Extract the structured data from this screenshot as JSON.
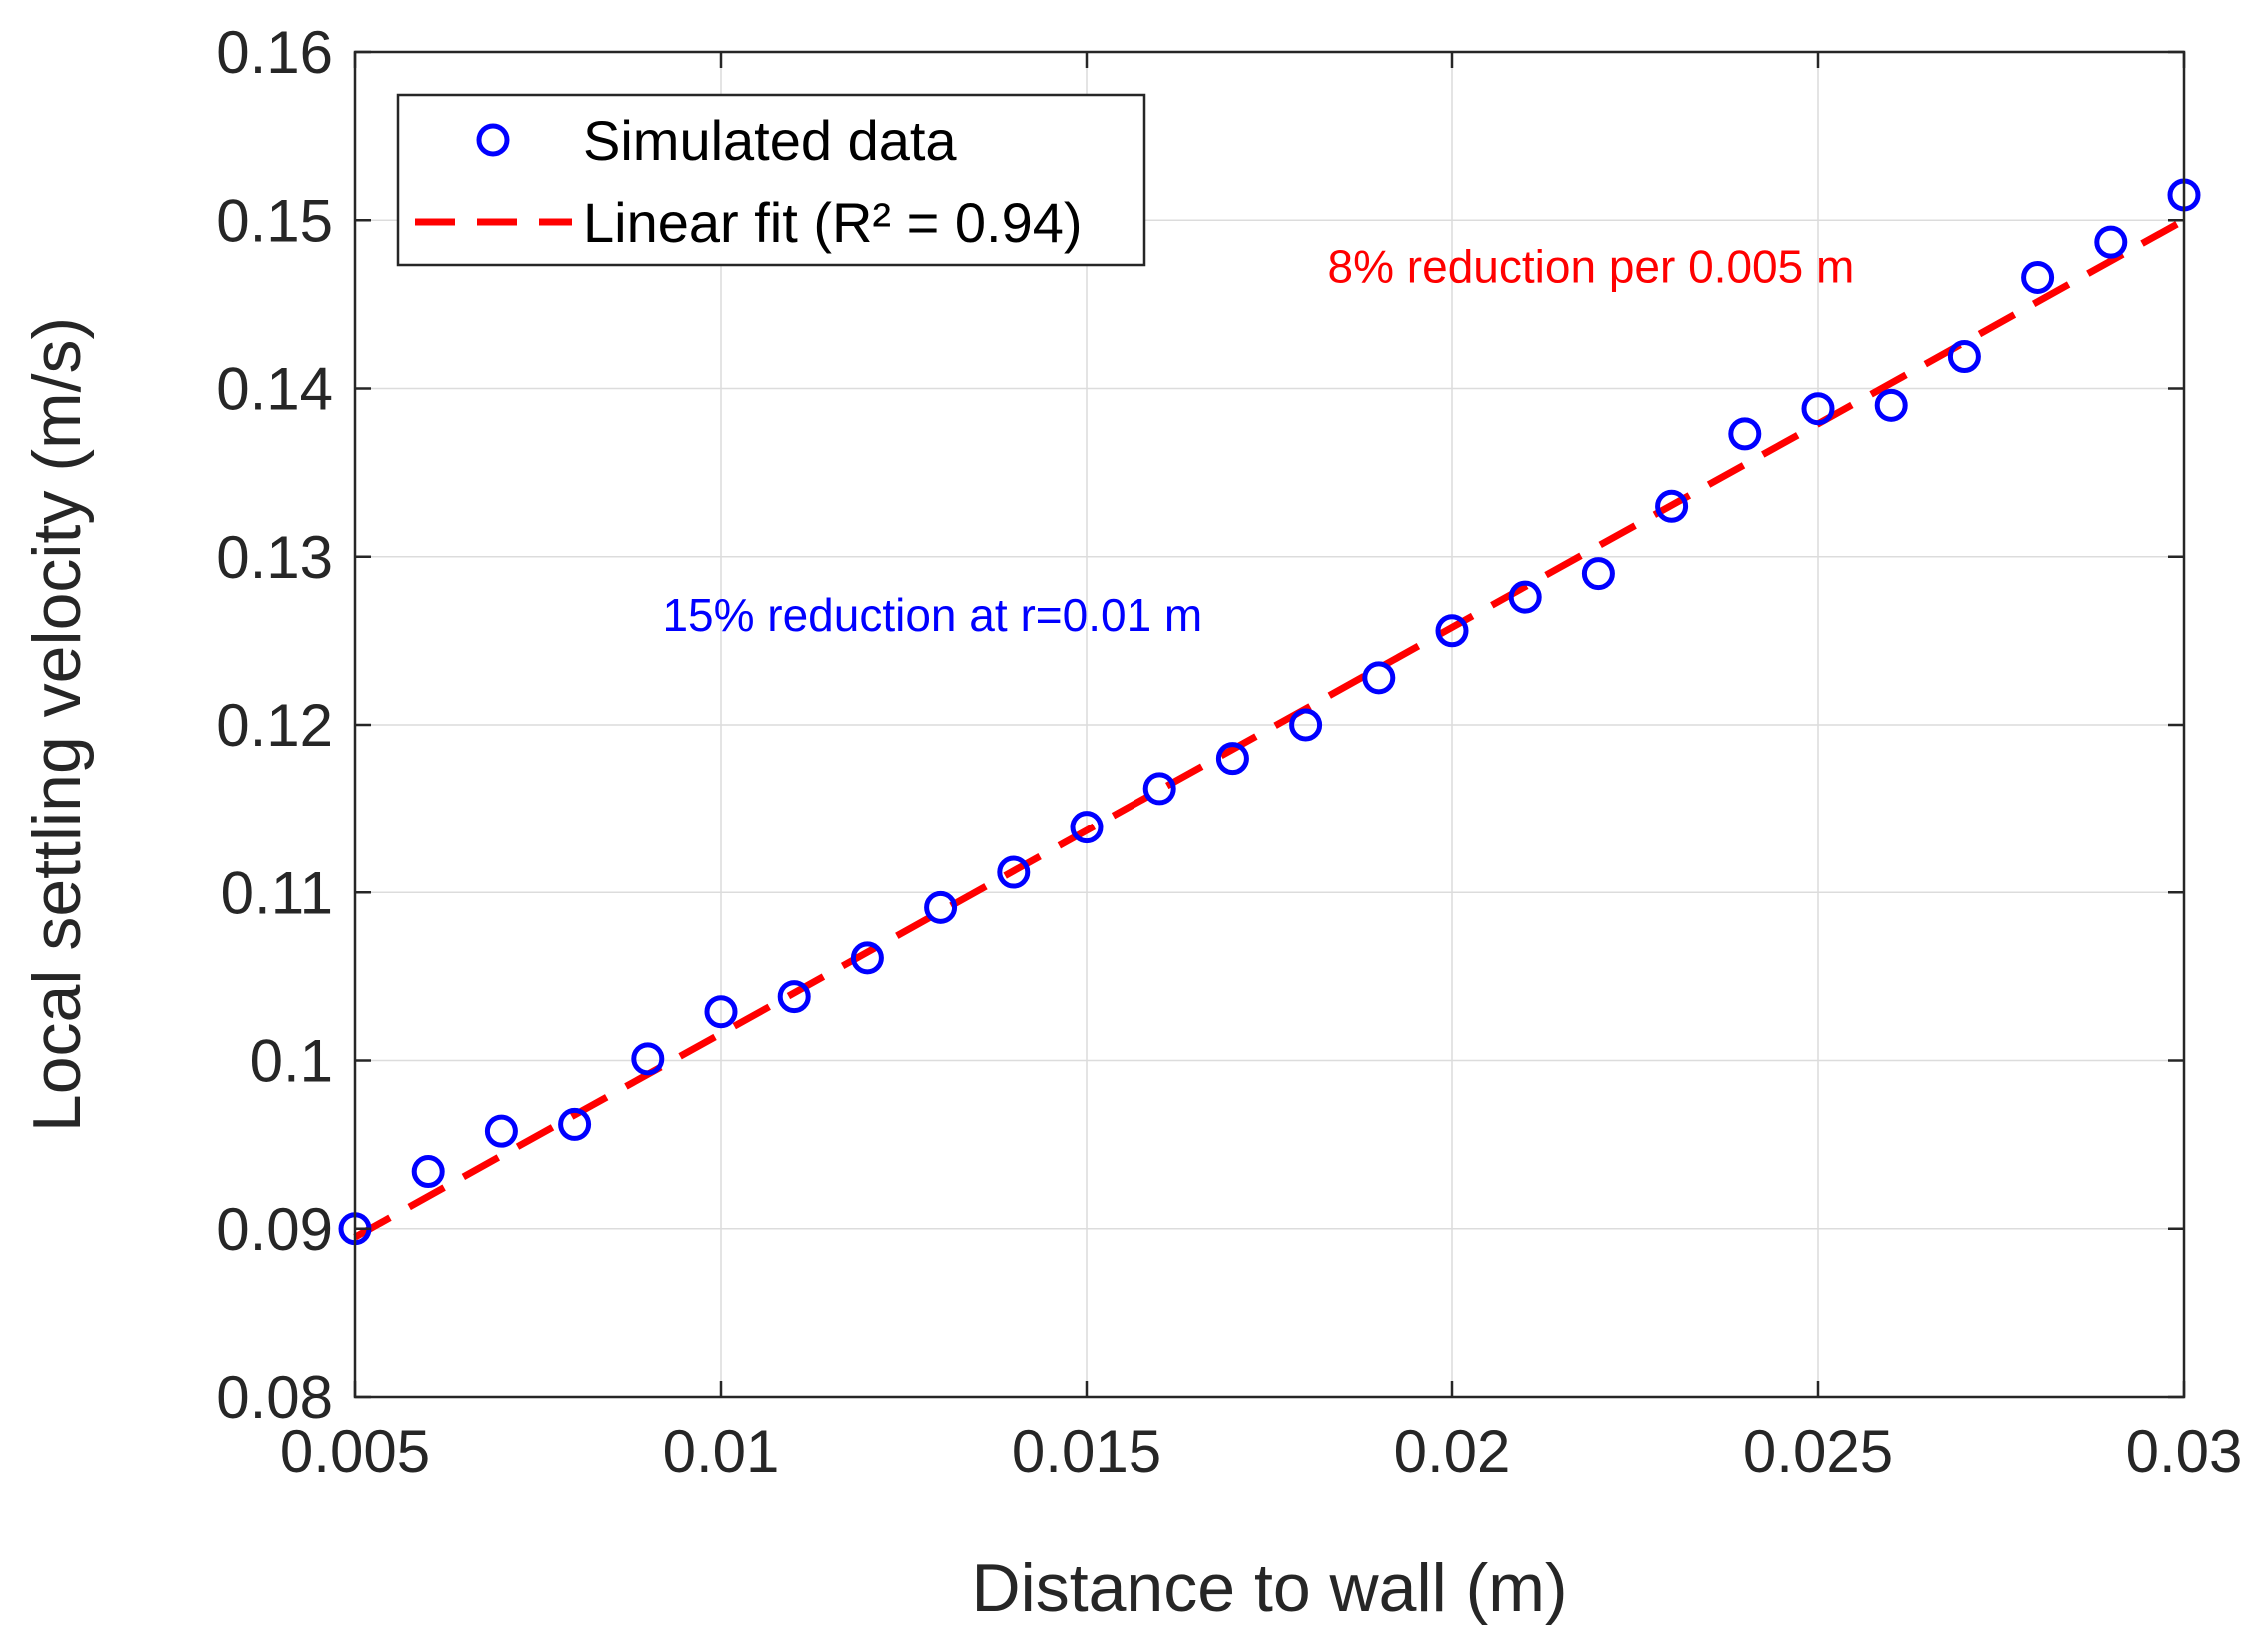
{
  "chart_data": {
    "type": "scatter",
    "title": "",
    "xlabel": "Distance to wall (m)",
    "ylabel": "Local settling velocity (m/s)",
    "xlim": [
      0.005,
      0.03
    ],
    "ylim": [
      0.08,
      0.16
    ],
    "grid": true,
    "x_ticks": [
      0.005,
      0.01,
      0.015,
      0.02,
      0.025,
      0.03
    ],
    "x_tick_labels": [
      "0.005",
      "0.01",
      "0.015",
      "0.02",
      "0.025",
      "0.03"
    ],
    "y_ticks": [
      0.08,
      0.09,
      0.1,
      0.11,
      0.12,
      0.13,
      0.14,
      0.15,
      0.16
    ],
    "y_tick_labels": [
      "0.08",
      "0.09",
      "0.1",
      "0.11",
      "0.12",
      "0.13",
      "0.14",
      "0.15",
      "0.16"
    ],
    "series": [
      {
        "name": "Simulated data",
        "kind": "scatter",
        "marker": "circle-open",
        "color": "#0000ff",
        "x": [
          0.005,
          0.006,
          0.007,
          0.008,
          0.009,
          0.01,
          0.011,
          0.012,
          0.013,
          0.014,
          0.015,
          0.016,
          0.017,
          0.018,
          0.019,
          0.02,
          0.021,
          0.022,
          0.023,
          0.024,
          0.025,
          0.026,
          0.027,
          0.028,
          0.029,
          0.03
        ],
        "y": [
          0.09,
          0.0934,
          0.0958,
          0.0962,
          0.1001,
          0.1029,
          0.1038,
          0.1061,
          0.1091,
          0.1112,
          0.1139,
          0.1162,
          0.118,
          0.12,
          0.1228,
          0.1256,
          0.1276,
          0.129,
          0.133,
          0.1373,
          0.1388,
          0.139,
          0.1419,
          0.1466,
          0.1487,
          0.1515
        ]
      },
      {
        "name": "Linear fit (R² = 0.94)",
        "kind": "line",
        "style": "dashed",
        "color": "#ff0000",
        "x": [
          0.005,
          0.03
        ],
        "y": [
          0.0895,
          0.15
        ]
      }
    ],
    "legend": {
      "position": "top-left",
      "entries": [
        "Simulated data",
        "Linear fit (R² = 0.94)"
      ]
    },
    "annotations": [
      {
        "text": "15% reduction at r=0.01 m",
        "color": "#0000ff",
        "x": 0.0092,
        "y": 0.1256
      },
      {
        "text": "8% reduction per 0.005 m",
        "color": "#ff0000",
        "x": 0.0183,
        "y": 0.1463
      }
    ]
  }
}
